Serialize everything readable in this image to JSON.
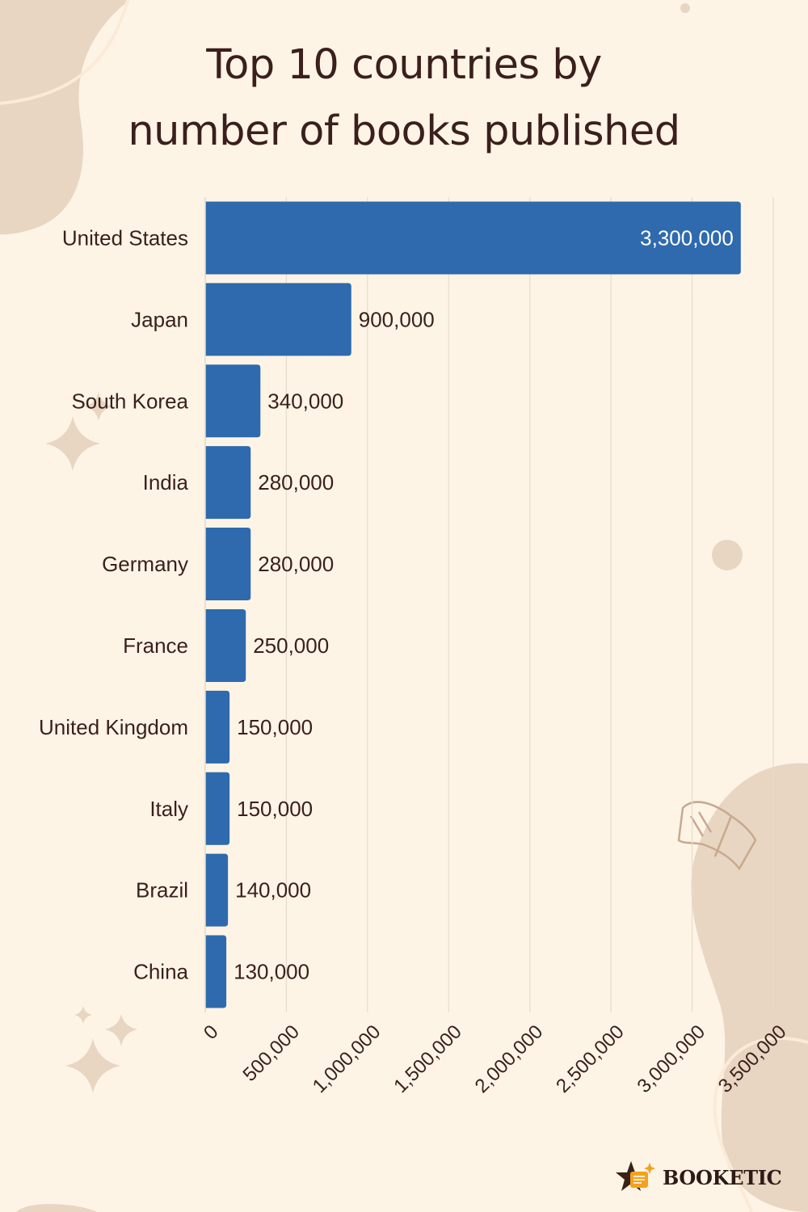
{
  "title_lines": [
    "Top 10 countries by",
    "number of books published"
  ],
  "brand": "BOOKETIC",
  "colors": {
    "background": "#fdf4e6",
    "bar": "#2e6aad",
    "text": "#3b1f1c",
    "gridline": "#e6dccd",
    "decoration": "#e8d5c2"
  },
  "chart_data": {
    "type": "bar",
    "orientation": "horizontal",
    "title": "Top 10 countries by number of books published",
    "categories": [
      "United States",
      "Japan",
      "South Korea",
      "India",
      "Germany",
      "France",
      "United Kingdom",
      "Italy",
      "Brazil",
      "China"
    ],
    "values": [
      3300000,
      900000,
      340000,
      280000,
      280000,
      250000,
      150000,
      150000,
      140000,
      130000
    ],
    "data_labels": [
      "3,300,000",
      "900,000",
      "340,000",
      "280,000",
      "280,000",
      "250,000",
      "150,000",
      "150,000",
      "140,000",
      "130,000"
    ],
    "xlim": [
      0,
      3500000
    ],
    "x_ticks": [
      0,
      500000,
      1000000,
      1500000,
      2000000,
      2500000,
      3000000,
      3500000
    ],
    "x_tick_labels": [
      "0",
      "500,000",
      "1,000,000",
      "1,500,000",
      "2,000,000",
      "2,500,000",
      "3,000,000",
      "3,500,000"
    ],
    "xlabel": "",
    "ylabel": "",
    "grid": true,
    "legend": "none"
  }
}
